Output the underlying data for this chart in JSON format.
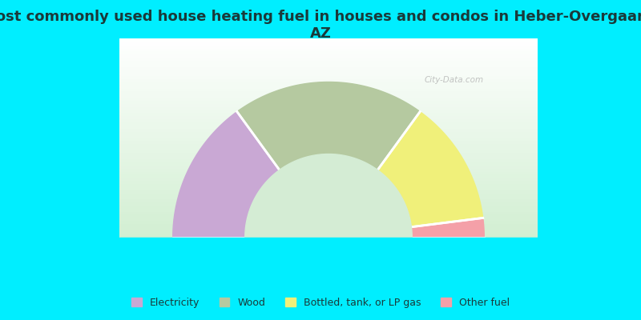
{
  "title": "Most commonly used house heating fuel in houses and condos in Heber-Overgaard,\nAZ",
  "title_fontsize": 13,
  "title_color": "#1a3a3a",
  "background_color": "#00eeff",
  "segments": [
    {
      "label": "Electricity",
      "value": 30,
      "color": "#c9a8d4"
    },
    {
      "label": "Wood",
      "value": 40,
      "color": "#b5c9a0"
    },
    {
      "label": "Bottled, tank, or LP gas",
      "value": 26,
      "color": "#f0f07a"
    },
    {
      "label": "Other fuel",
      "value": 4,
      "color": "#f4a0a8"
    }
  ],
  "legend_colors": [
    "#c9a8d4",
    "#b5c9a0",
    "#f0f07a",
    "#f4a0a8"
  ],
  "legend_labels": [
    "Electricity",
    "Wood",
    "Bottled, tank, or LP gas",
    "Other fuel"
  ],
  "watermark": "City-Data.com",
  "outer_r": 0.82,
  "inner_r": 0.44
}
